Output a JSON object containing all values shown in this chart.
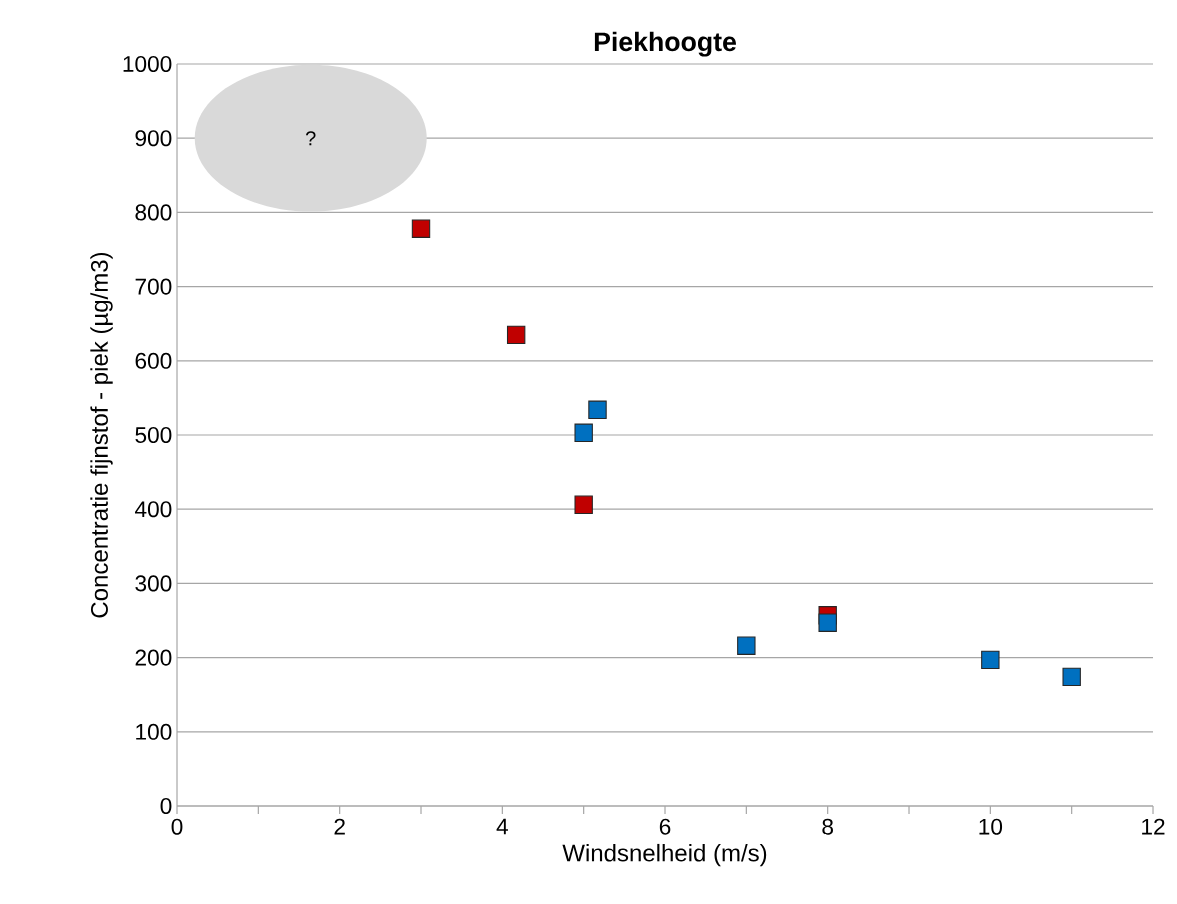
{
  "chart_data": {
    "type": "scatter",
    "title": "Piekhoogte",
    "xlabel": "Windsnelheid (m/s)",
    "ylabel": "Concentratie fijnstof - piek (µg/m3)",
    "marker": "square",
    "grid": "y",
    "xlim": [
      0,
      12
    ],
    "ylim": [
      0,
      1000
    ],
    "xticks": [
      0,
      {
        "value": 1,
        "label": null
      },
      2,
      {
        "value": 3,
        "label": null
      },
      4,
      {
        "value": 5,
        "label": null
      },
      6,
      {
        "value": 7,
        "label": null
      },
      8,
      {
        "value": 9,
        "label": null
      },
      10,
      {
        "value": 11,
        "label": null
      },
      12
    ],
    "yticks": [
      0,
      100,
      200,
      300,
      400,
      500,
      600,
      700,
      800,
      900,
      1000
    ],
    "annotations": [
      "?"
    ],
    "series": [
      {
        "color": "#c00000",
        "x": [
          3,
          4.17,
          5,
          8
        ],
        "values": [
          778,
          635,
          406,
          257
        ]
      },
      {
        "color": "#0070c0",
        "x": [
          5.17,
          5,
          7,
          8,
          10,
          11
        ],
        "values": [
          534,
          503,
          216,
          247,
          197,
          174
        ]
      }
    ]
  }
}
